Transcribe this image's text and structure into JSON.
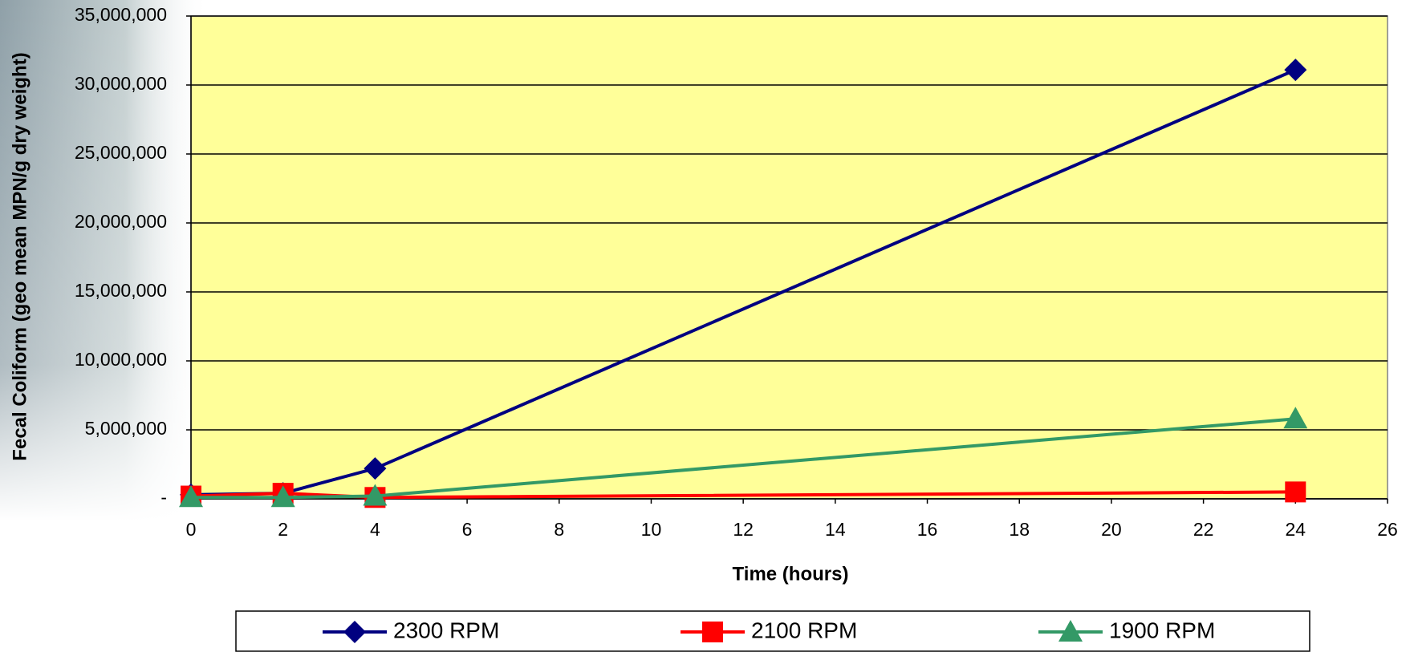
{
  "chart_data": {
    "type": "line",
    "x_label": "Time (hours)",
    "y_label": "Fecal Coliform (geo mean MPN/g dry weight)",
    "xlim": [
      0,
      26
    ],
    "xticks": [
      0,
      2,
      4,
      6,
      8,
      10,
      12,
      14,
      16,
      18,
      20,
      22,
      24,
      26
    ],
    "ylim": [
      0,
      35000000
    ],
    "yticks": [
      {
        "value": 0,
        "label": "-"
      },
      {
        "value": 5000000,
        "label": "5,000,000"
      },
      {
        "value": 10000000,
        "label": "10,000,000"
      },
      {
        "value": 15000000,
        "label": "15,000,000"
      },
      {
        "value": 20000000,
        "label": "20,000,000"
      },
      {
        "value": 25000000,
        "label": "25,000,000"
      },
      {
        "value": 30000000,
        "label": "30,000,000"
      },
      {
        "value": 35000000,
        "label": "35,000,000"
      }
    ],
    "grid": true,
    "legend": "bottom",
    "series": [
      {
        "name": "2300 RPM",
        "color": "#000080",
        "marker": "diamond",
        "x": [
          0,
          2,
          4,
          24
        ],
        "values": [
          300000,
          400000,
          2200000,
          31100000
        ]
      },
      {
        "name": "2100 RPM",
        "color": "#ff0000",
        "marker": "square",
        "x": [
          0,
          2,
          4,
          24
        ],
        "values": [
          200000,
          400000,
          100000,
          500000
        ]
      },
      {
        "name": "1900 RPM",
        "color": "#339966",
        "marker": "triangle",
        "x": [
          0,
          2,
          4,
          24
        ],
        "values": [
          100000,
          100000,
          200000,
          5800000
        ]
      }
    ]
  }
}
